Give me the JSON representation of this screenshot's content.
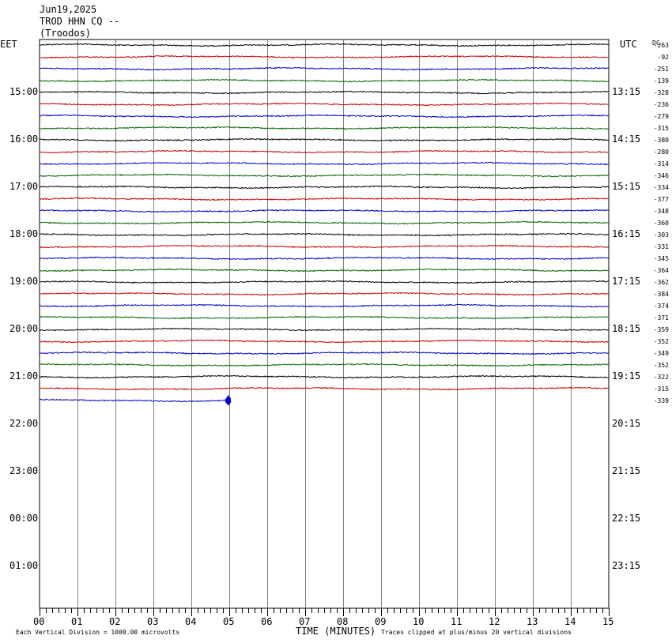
{
  "header": {
    "date": "Jun19,2025",
    "station": "TROD HHN CQ --",
    "location": "(Troodos)"
  },
  "left_axis_label": "EET",
  "right_axis_label": "UTC",
  "dc_label": "DC",
  "footer": {
    "scale_note": "Each Vertical Division = 1000.00 microvolts",
    "x_axis_title": "TIME (MINUTES)",
    "clip_note": "Traces clipped at plus/minus 20 vertical divisions"
  },
  "colors": {
    "trace_cycle": [
      "#000000",
      "#cc0000",
      "#0000cc",
      "#006600"
    ],
    "grid": "#808080"
  },
  "chart_data": {
    "type": "line",
    "title": "TROD HHN CQ --",
    "xlabel": "TIME (MINUTES)",
    "xlim": [
      0,
      15
    ],
    "x_ticks": [
      "00",
      "01",
      "02",
      "03",
      "04",
      "05",
      "06",
      "07",
      "08",
      "09",
      "10",
      "11",
      "12",
      "13",
      "14",
      "15"
    ],
    "eet_hour_labels": [
      "15:00",
      "16:00",
      "17:00",
      "18:00",
      "19:00",
      "20:00",
      "21:00",
      "22:00",
      "23:00",
      "00:00",
      "01:00"
    ],
    "utc_hour_labels": [
      "13:15",
      "14:15",
      "15:15",
      "16:15",
      "17:15",
      "18:15",
      "19:15",
      "20:15",
      "21:15",
      "22:15",
      "23:15"
    ],
    "traces_per_hour": 4,
    "row_minutes": 15,
    "dc_offsets": [
      -263,
      -92,
      -251,
      -139,
      -328,
      -236,
      -279,
      -315,
      -380,
      -280,
      -314,
      -346,
      -334,
      -377,
      -348,
      -360,
      -303,
      -331,
      -345,
      -364,
      -362,
      -384,
      -374,
      -371,
      -359,
      -352,
      -349,
      -352,
      -322,
      -315,
      -339
    ],
    "last_trace_end_minute": 5,
    "last_trace_event_minute": 4.9
  }
}
